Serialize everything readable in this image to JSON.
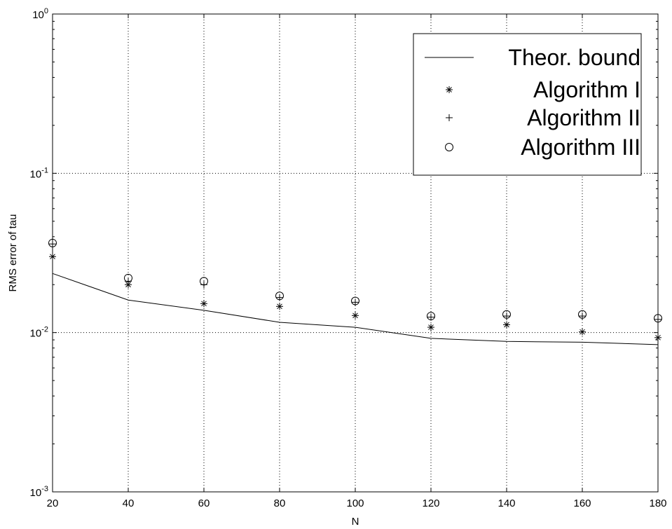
{
  "chart_data": {
    "type": "line",
    "title": "",
    "xlabel": "N",
    "ylabel": "RMS error of tau",
    "xlim": [
      20,
      180
    ],
    "ylim": [
      0.001,
      1
    ],
    "yscale": "log",
    "grid": true,
    "x": [
      20,
      40,
      60,
      80,
      100,
      120,
      140,
      160,
      180
    ],
    "x_ticks": [
      "20",
      "40",
      "60",
      "80",
      "100",
      "120",
      "140",
      "160",
      "180"
    ],
    "y_ticks": [
      {
        "base": "10",
        "exp": "0",
        "value": 1
      },
      {
        "base": "10",
        "exp": "-1",
        "value": 0.1
      },
      {
        "base": "10",
        "exp": "-2",
        "value": 0.01
      },
      {
        "base": "10",
        "exp": "-3",
        "value": 0.001
      }
    ],
    "legend_position": "top-right",
    "series": [
      {
        "name": "Theor. bound",
        "style": "line",
        "values": [
          0.0235,
          0.016,
          0.0138,
          0.0116,
          0.0108,
          0.0092,
          0.0088,
          0.0087,
          0.0084
        ]
      },
      {
        "name": "Algorithm I",
        "style": "star",
        "values": [
          0.03,
          0.02,
          0.0152,
          0.0146,
          0.0128,
          0.0108,
          0.0112,
          0.0101,
          0.0093
        ]
      },
      {
        "name": "Algorithm II",
        "style": "plus",
        "values": [
          0.036,
          0.021,
          0.02,
          0.0166,
          0.0155,
          0.0125,
          0.0127,
          0.0127,
          0.0121
        ]
      },
      {
        "name": "Algorithm III",
        "style": "circle",
        "values": [
          0.0365,
          0.022,
          0.021,
          0.017,
          0.0158,
          0.0127,
          0.013,
          0.013,
          0.0123
        ]
      }
    ]
  }
}
